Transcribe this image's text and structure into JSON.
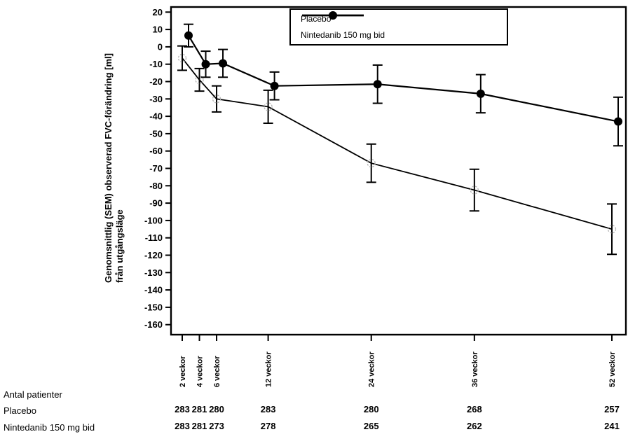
{
  "figure": {
    "background": "#ffffff",
    "axis_color": "#000000"
  },
  "legend": {
    "items": [
      {
        "label": "Placebo",
        "marker": "open-circle"
      },
      {
        "label": "Nintedanib 150 mg bid",
        "marker": "filled-circle"
      }
    ]
  },
  "chart_data": {
    "type": "line",
    "error_bars": "SEM",
    "x_weeks": [
      2,
      4,
      6,
      12,
      24,
      36,
      52
    ],
    "x_tick_labels": [
      "2 veckor",
      "4 veckor",
      "6 veckor",
      "12 veckor",
      "24 veckor",
      "36 veckor",
      "52 veckor"
    ],
    "ylabel_line1": "Genomsnittlig (SEM) observerad FVC-förändring [ml]",
    "ylabel_line2": "från utgångsläge",
    "ylim": [
      -160,
      20
    ],
    "y_tick_step": 10,
    "grid": false,
    "legend_position": "top-inside",
    "series": [
      {
        "name": "Placebo",
        "marker": "open-circle",
        "line_color": "#000000",
        "marker_color": "#b3b3b3",
        "values": [
          -6.5,
          -19,
          -30,
          -34.5,
          -67,
          -82.5,
          -105
        ],
        "sem": [
          7,
          6.5,
          7.5,
          9.5,
          11,
          12,
          14.5
        ]
      },
      {
        "name": "Nintedanib 150 mg bid",
        "marker": "filled-circle",
        "line_color": "#000000",
        "marker_color": "#000000",
        "values": [
          6.5,
          -10,
          -9.5,
          -22.5,
          -21.5,
          -27,
          -43
        ],
        "sem": [
          6.5,
          7.5,
          8,
          8,
          11,
          11,
          14
        ]
      }
    ]
  },
  "patient_table": {
    "title": "Antal patienter",
    "rows": [
      {
        "label": "Placebo",
        "values": [
          "283",
          "281",
          "280",
          "283",
          "280",
          "268",
          "257"
        ]
      },
      {
        "label": "Nintedanib 150 mg bid",
        "values": [
          "283",
          "281",
          "273",
          "278",
          "265",
          "262",
          "241"
        ]
      }
    ]
  }
}
